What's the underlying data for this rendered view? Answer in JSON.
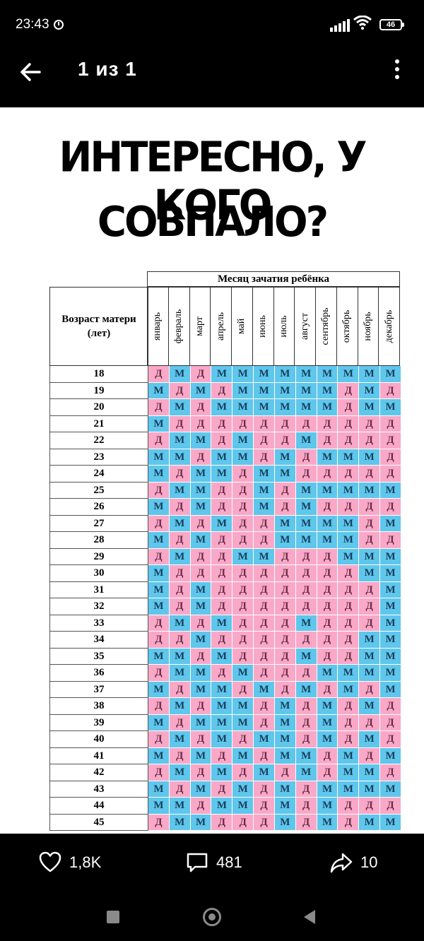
{
  "status_bar": {
    "time": "23:43",
    "battery": "46"
  },
  "header": {
    "counter": "1 из 1"
  },
  "image": {
    "headline_line1": "ИНТЕРЕСНО, У КОГО",
    "headline_line2": "СОВПАЛО?",
    "table": {
      "corner_label": "Возраст матери (лет)",
      "month_header": "Месяц зачатия ребёнка",
      "months": [
        "январь",
        "февраль",
        "март",
        "апрель",
        "май",
        "июнь",
        "июль",
        "август",
        "сентябрь",
        "октябрь",
        "ноябрь",
        "декабрь"
      ],
      "rows": [
        {
          "age": "18",
          "cells": [
            "Д",
            "М",
            "Д",
            "М",
            "М",
            "М",
            "М",
            "М",
            "М",
            "М",
            "М",
            "М"
          ]
        },
        {
          "age": "19",
          "cells": [
            "М",
            "Д",
            "М",
            "Д",
            "М",
            "М",
            "М",
            "М",
            "М",
            "Д",
            "М",
            "Д"
          ]
        },
        {
          "age": "20",
          "cells": [
            "Д",
            "М",
            "Д",
            "М",
            "М",
            "М",
            "М",
            "М",
            "М",
            "Д",
            "М",
            "М"
          ]
        },
        {
          "age": "21",
          "cells": [
            "М",
            "Д",
            "Д",
            "Д",
            "Д",
            "Д",
            "Д",
            "Д",
            "Д",
            "Д",
            "Д",
            "Д"
          ]
        },
        {
          "age": "22",
          "cells": [
            "Д",
            "М",
            "М",
            "Д",
            "М",
            "Д",
            "Д",
            "М",
            "Д",
            "Д",
            "Д",
            "Д"
          ]
        },
        {
          "age": "23",
          "cells": [
            "М",
            "М",
            "Д",
            "М",
            "М",
            "Д",
            "М",
            "Д",
            "М",
            "М",
            "М",
            "Д"
          ]
        },
        {
          "age": "24",
          "cells": [
            "М",
            "Д",
            "М",
            "М",
            "Д",
            "М",
            "М",
            "Д",
            "Д",
            "Д",
            "Д",
            "Д"
          ]
        },
        {
          "age": "25",
          "cells": [
            "Д",
            "М",
            "М",
            "Д",
            "Д",
            "М",
            "Д",
            "М",
            "М",
            "М",
            "М",
            "М"
          ]
        },
        {
          "age": "26",
          "cells": [
            "М",
            "Д",
            "М",
            "Д",
            "Д",
            "М",
            "Д",
            "М",
            "Д",
            "Д",
            "Д",
            "Д"
          ]
        },
        {
          "age": "27",
          "cells": [
            "Д",
            "М",
            "Д",
            "М",
            "Д",
            "Д",
            "М",
            "М",
            "М",
            "М",
            "Д",
            "М"
          ]
        },
        {
          "age": "28",
          "cells": [
            "М",
            "Д",
            "М",
            "Д",
            "Д",
            "Д",
            "М",
            "М",
            "М",
            "М",
            "Д",
            "Д"
          ]
        },
        {
          "age": "29",
          "cells": [
            "Д",
            "М",
            "Д",
            "Д",
            "М",
            "М",
            "Д",
            "Д",
            "Д",
            "М",
            "М",
            "М"
          ]
        },
        {
          "age": "30",
          "cells": [
            "М",
            "Д",
            "Д",
            "Д",
            "Д",
            "Д",
            "Д",
            "Д",
            "Д",
            "Д",
            "М",
            "М"
          ]
        },
        {
          "age": "31",
          "cells": [
            "М",
            "Д",
            "М",
            "Д",
            "Д",
            "Д",
            "Д",
            "Д",
            "Д",
            "Д",
            "Д",
            "М"
          ]
        },
        {
          "age": "32",
          "cells": [
            "М",
            "Д",
            "М",
            "Д",
            "Д",
            "Д",
            "Д",
            "Д",
            "Д",
            "Д",
            "Д",
            "М"
          ]
        },
        {
          "age": "33",
          "cells": [
            "Д",
            "М",
            "Д",
            "М",
            "Д",
            "Д",
            "Д",
            "М",
            "Д",
            "Д",
            "Д",
            "М"
          ]
        },
        {
          "age": "34",
          "cells": [
            "Д",
            "Д",
            "М",
            "Д",
            "Д",
            "Д",
            "Д",
            "Д",
            "Д",
            "Д",
            "М",
            "М"
          ]
        },
        {
          "age": "35",
          "cells": [
            "М",
            "М",
            "Д",
            "М",
            "Д",
            "Д",
            "Д",
            "М",
            "Д",
            "Д",
            "М",
            "М"
          ]
        },
        {
          "age": "36",
          "cells": [
            "Д",
            "М",
            "М",
            "Д",
            "М",
            "Д",
            "Д",
            "Д",
            "М",
            "М",
            "М",
            "М"
          ]
        },
        {
          "age": "37",
          "cells": [
            "М",
            "Д",
            "М",
            "М",
            "Д",
            "М",
            "Д",
            "М",
            "Д",
            "М",
            "Д",
            "М"
          ]
        },
        {
          "age": "38",
          "cells": [
            "Д",
            "М",
            "Д",
            "М",
            "М",
            "Д",
            "М",
            "Д",
            "М",
            "Д",
            "М",
            "Д"
          ]
        },
        {
          "age": "39",
          "cells": [
            "М",
            "Д",
            "М",
            "М",
            "М",
            "Д",
            "М",
            "Д",
            "М",
            "Д",
            "Д",
            "Д"
          ]
        },
        {
          "age": "40",
          "cells": [
            "Д",
            "М",
            "Д",
            "М",
            "Д",
            "М",
            "М",
            "Д",
            "М",
            "Д",
            "М",
            "Д"
          ]
        },
        {
          "age": "41",
          "cells": [
            "М",
            "Д",
            "М",
            "Д",
            "М",
            "Д",
            "М",
            "М",
            "Д",
            "М",
            "Д",
            "М"
          ]
        },
        {
          "age": "42",
          "cells": [
            "Д",
            "М",
            "Д",
            "М",
            "Д",
            "М",
            "Д",
            "М",
            "Д",
            "М",
            "М",
            "Д"
          ]
        },
        {
          "age": "43",
          "cells": [
            "М",
            "Д",
            "М",
            "Д",
            "М",
            "Д",
            "М",
            "Д",
            "М",
            "М",
            "М",
            "М"
          ]
        },
        {
          "age": "44",
          "cells": [
            "М",
            "М",
            "Д",
            "М",
            "М",
            "Д",
            "М",
            "Д",
            "М",
            "Д",
            "Д",
            "Д"
          ]
        },
        {
          "age": "45",
          "cells": [
            "Д",
            "М",
            "М",
            "Д",
            "Д",
            "Д",
            "М",
            "Д",
            "М",
            "Д",
            "М",
            "М"
          ]
        }
      ]
    }
  },
  "actions": {
    "likes": "1,8K",
    "comments": "481",
    "shares": "10"
  },
  "colors": {
    "girl": "#f9a8c8",
    "boy": "#5fc6ec"
  },
  "icons": {
    "back": "arrow-left-icon",
    "menu": "more-vert-icon",
    "like": "heart-icon",
    "comment": "comment-icon",
    "share": "share-icon"
  }
}
